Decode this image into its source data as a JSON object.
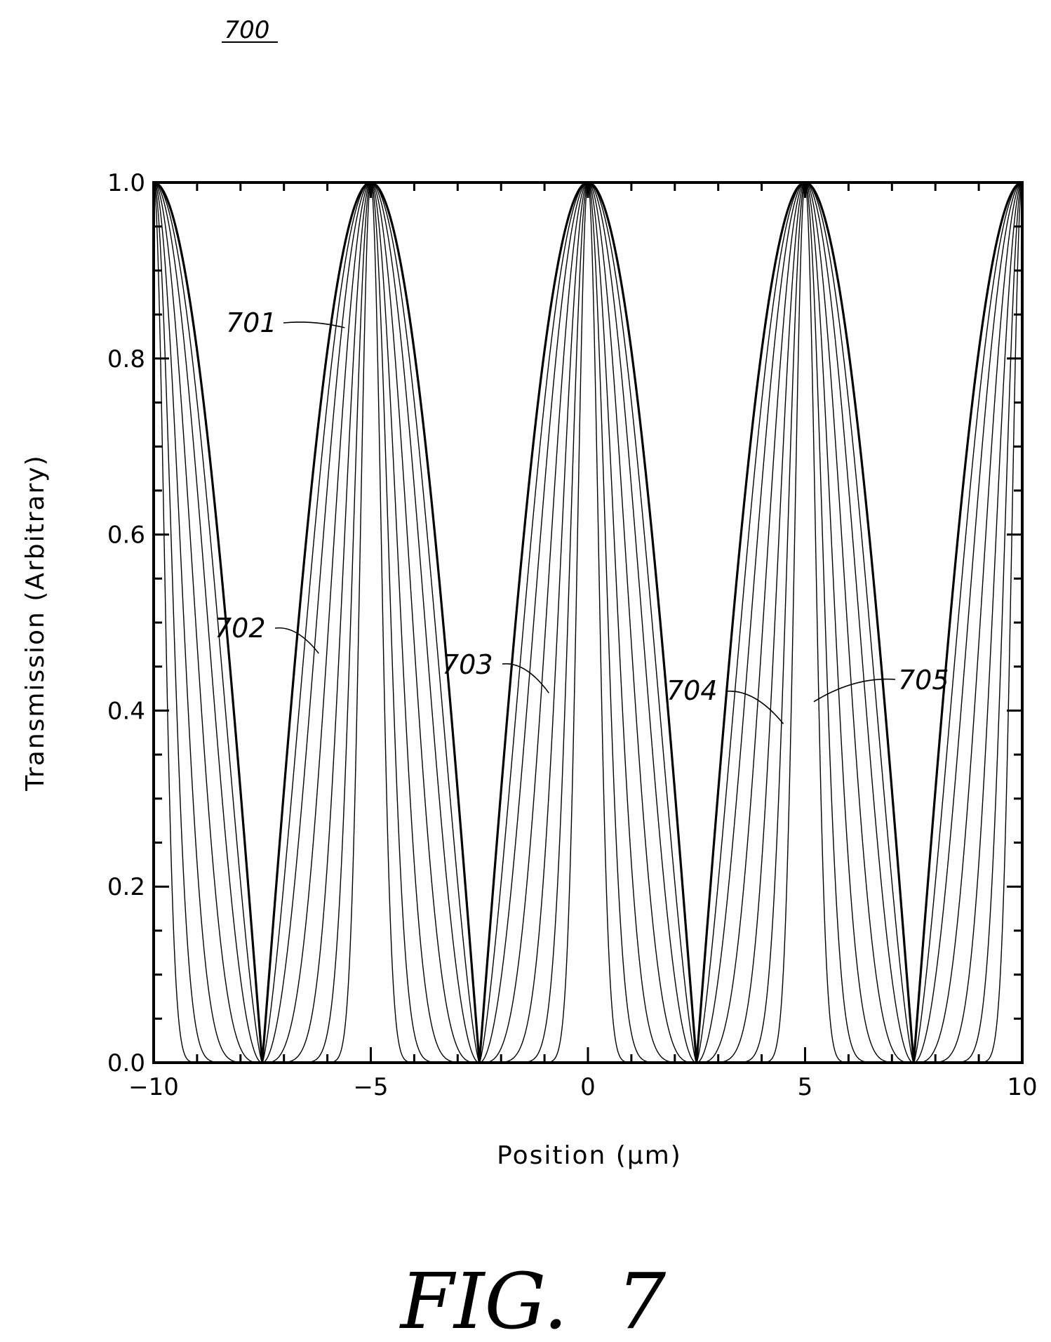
{
  "figure": {
    "ref_number": "700",
    "caption": "FIG.  7"
  },
  "chart_data": {
    "type": "line",
    "xlabel": "Position (μm)",
    "ylabel": "Transmission (Arbitrary)",
    "xlim": [
      -10,
      10
    ],
    "ylim": [
      0,
      1
    ],
    "xticks": [
      -10,
      -5,
      0,
      5,
      10
    ],
    "xtick_labels": [
      "−10",
      "−5",
      "0",
      "5",
      "10"
    ],
    "yticks": [
      0,
      0.2,
      0.4,
      0.6,
      0.8,
      1.0
    ],
    "ytick_labels": [
      "0.0",
      "0.2",
      "0.4",
      "0.6",
      "0.8",
      "1.0"
    ],
    "grid": false,
    "period": 5,
    "peak_positions": [
      -10,
      -5,
      0,
      5,
      10
    ],
    "zero_positions": [
      -7.5,
      -2.5,
      2.5,
      7.5
    ],
    "series": [
      {
        "name": "701",
        "shape_exponent": 1,
        "color": "#000000"
      },
      {
        "name": "702",
        "shape_exponent": 1.35,
        "color": "#000000"
      },
      {
        "name": "703",
        "shape_exponent": 2,
        "color": "#000000"
      },
      {
        "name": "704",
        "shape_exponent": 3.5,
        "color": "#000000"
      },
      {
        "name": "705",
        "shape_exponent": 7,
        "color": "#000000"
      },
      {
        "shape_exponent": 16,
        "color": "#000000"
      },
      {
        "shape_exponent": 45,
        "color": "#000000"
      }
    ],
    "annotations": [
      {
        "label": "701",
        "x": -5.6,
        "y": 0.835
      },
      {
        "label": "702",
        "x": -6.2,
        "y": 0.465
      },
      {
        "label": "703",
        "x": -0.9,
        "y": 0.42
      },
      {
        "label": "704",
        "x": 4.5,
        "y": 0.385
      },
      {
        "label": "705",
        "x": 5.2,
        "y": 0.41
      }
    ]
  }
}
